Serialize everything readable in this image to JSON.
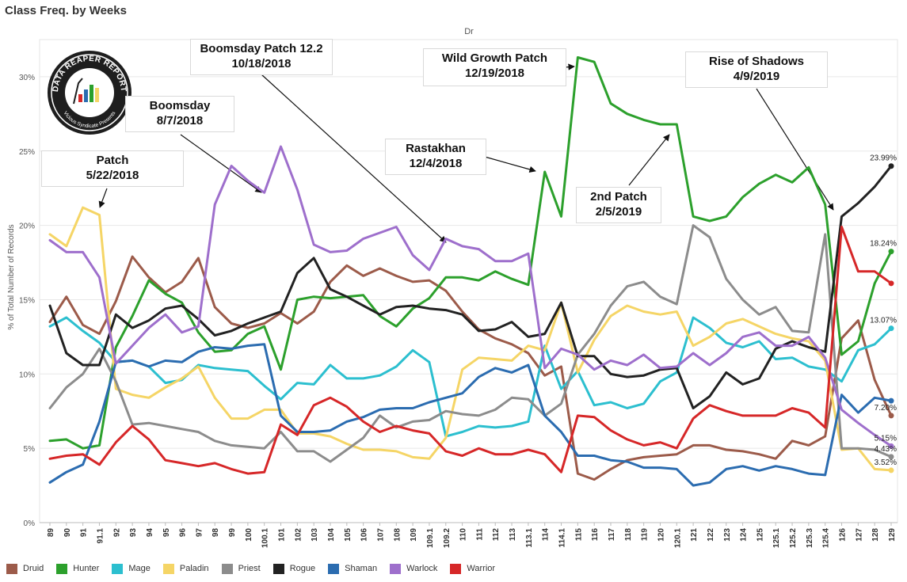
{
  "title": "Class Freq. by Weeks",
  "chart_data": {
    "type": "line",
    "subtitle": "Dr",
    "ylabel": "% of Total Number of Records",
    "ylim": [
      0,
      32.5
    ],
    "yticks": [
      0,
      5,
      10,
      15,
      20,
      25,
      30
    ],
    "ytick_labels": [
      "0%",
      "5%",
      "10%",
      "15%",
      "20%",
      "25%",
      "30%"
    ],
    "grid": true,
    "legend_position": "bottom",
    "categories": [
      "89",
      "90",
      "91",
      "91.1",
      "92",
      "93",
      "94",
      "95",
      "96",
      "97",
      "98",
      "99",
      "100",
      "100.1",
      "101",
      "102",
      "103",
      "104",
      "105",
      "106",
      "107",
      "108",
      "109",
      "109.1",
      "109.2",
      "110",
      "111",
      "112",
      "113",
      "113.1",
      "114",
      "114.1",
      "115",
      "116",
      "117",
      "118",
      "119",
      "120",
      "120.1",
      "121",
      "122",
      "123",
      "124",
      "125",
      "125.1",
      "125.2",
      "125.3",
      "125.4",
      "126",
      "127",
      "128",
      "129"
    ],
    "series": [
      {
        "name": "Druid",
        "color": "#9c5b4a",
        "values": [
          13.5,
          15.2,
          13.3,
          12.7,
          14.9,
          17.9,
          16.5,
          15.5,
          16.2,
          17.8,
          14.5,
          13.4,
          13.1,
          13.4,
          14.1,
          13.4,
          14.2,
          16.2,
          17.3,
          16.6,
          17.1,
          16.6,
          16.2,
          16.3,
          15.6,
          14.2,
          13.0,
          12.4,
          12.0,
          11.4,
          9.9,
          10.5,
          3.3,
          2.9,
          3.6,
          4.2,
          4.4,
          4.5,
          4.6,
          5.2,
          5.2,
          4.9,
          4.8,
          4.6,
          4.3,
          5.5,
          5.2,
          5.8,
          12.4,
          13.6,
          9.6,
          7.2
        ],
        "end_label": "7.20%"
      },
      {
        "name": "Hunter",
        "color": "#2ca02c",
        "values": [
          5.5,
          5.6,
          5.0,
          5.2,
          11.8,
          13.9,
          16.3,
          15.4,
          14.8,
          12.8,
          11.5,
          11.6,
          12.7,
          13.2,
          10.3,
          15.0,
          15.2,
          15.1,
          15.2,
          15.3,
          13.9,
          13.2,
          14.4,
          15.1,
          16.5,
          16.5,
          16.3,
          16.9,
          16.4,
          16.0,
          23.6,
          20.6,
          31.3,
          31.0,
          28.2,
          27.5,
          27.1,
          26.8,
          26.8,
          20.6,
          20.3,
          20.6,
          21.9,
          22.8,
          23.4,
          22.9,
          23.9,
          21.4,
          11.3,
          12.2,
          16.1,
          18.24
        ],
        "end_label": "18.24%"
      },
      {
        "name": "Mage",
        "color": "#2cbfcf",
        "values": [
          13.2,
          13.8,
          12.9,
          12.1,
          10.8,
          10.9,
          10.5,
          9.4,
          9.6,
          10.6,
          10.4,
          10.3,
          10.2,
          9.2,
          8.3,
          9.4,
          9.3,
          10.6,
          9.7,
          9.7,
          9.9,
          10.5,
          11.6,
          10.8,
          5.8,
          6.1,
          6.5,
          6.4,
          6.5,
          6.8,
          11.9,
          9.0,
          10.2,
          7.9,
          8.1,
          7.7,
          8.0,
          9.5,
          10.1,
          13.8,
          13.1,
          12.1,
          11.8,
          12.2,
          11.0,
          11.1,
          10.5,
          10.3,
          9.5,
          11.6,
          12.0,
          13.07
        ],
        "end_label": "13.07%"
      },
      {
        "name": "Paladin",
        "color": "#f5d566",
        "values": [
          19.4,
          18.6,
          21.2,
          20.7,
          9.0,
          8.6,
          8.4,
          9.1,
          9.7,
          10.5,
          8.4,
          7.0,
          7.0,
          7.6,
          7.6,
          6.0,
          6.0,
          5.8,
          5.3,
          4.9,
          4.9,
          4.8,
          4.4,
          4.3,
          5.7,
          10.3,
          11.1,
          11.0,
          10.9,
          11.9,
          11.6,
          14.8,
          10.1,
          12.3,
          13.9,
          14.6,
          14.2,
          14.0,
          14.2,
          11.9,
          12.5,
          13.4,
          13.7,
          13.2,
          12.7,
          12.4,
          12.2,
          10.9,
          4.9,
          5.0,
          3.6,
          3.52
        ],
        "end_label": "3.52%"
      },
      {
        "name": "Priest",
        "color": "#8c8c8c",
        "values": [
          7.7,
          9.1,
          10.0,
          11.7,
          9.5,
          6.6,
          6.7,
          6.5,
          6.3,
          6.1,
          5.5,
          5.2,
          5.1,
          5.0,
          6.1,
          4.8,
          4.8,
          4.1,
          4.9,
          5.7,
          7.2,
          6.4,
          6.8,
          6.9,
          7.5,
          7.3,
          7.2,
          7.6,
          8.4,
          8.3,
          7.2,
          8.0,
          11.3,
          12.7,
          14.6,
          15.9,
          16.2,
          15.2,
          14.7,
          20.0,
          19.2,
          16.4,
          15.0,
          14.0,
          14.5,
          12.9,
          12.8,
          19.4,
          5.0,
          5.0,
          4.9,
          4.43
        ],
        "end_label": "4.43%"
      },
      {
        "name": "Rogue",
        "color": "#222222",
        "values": [
          14.6,
          11.4,
          10.6,
          10.6,
          14.0,
          13.1,
          13.6,
          14.4,
          14.6,
          13.7,
          12.6,
          12.9,
          13.4,
          13.8,
          14.2,
          16.8,
          17.8,
          15.7,
          15.2,
          14.6,
          14.0,
          14.5,
          14.6,
          14.4,
          14.3,
          14.0,
          12.9,
          13.0,
          13.5,
          12.5,
          12.7,
          14.8,
          11.2,
          11.2,
          10.0,
          9.8,
          9.9,
          10.3,
          10.4,
          7.7,
          8.5,
          10.1,
          9.3,
          9.7,
          11.7,
          12.2,
          11.8,
          11.5,
          20.6,
          21.5,
          22.6,
          23.99
        ],
        "end_label": "23.99%"
      },
      {
        "name": "Shaman",
        "color": "#2b6cb0",
        "values": [
          2.7,
          3.4,
          3.9,
          6.8,
          10.8,
          10.9,
          10.5,
          10.9,
          10.8,
          11.5,
          11.8,
          11.7,
          11.9,
          12.0,
          7.2,
          6.1,
          6.1,
          6.2,
          6.8,
          7.1,
          7.6,
          7.7,
          7.7,
          8.1,
          8.4,
          8.7,
          9.8,
          10.4,
          10.1,
          10.6,
          7.2,
          6.1,
          4.5,
          4.5,
          4.2,
          4.1,
          3.7,
          3.7,
          3.6,
          2.5,
          2.7,
          3.6,
          3.8,
          3.5,
          3.8,
          3.6,
          3.3,
          3.2,
          8.6,
          7.4,
          8.4,
          8.2
        ],
        "end_label": ""
      },
      {
        "name": "Warlock",
        "color": "#9e6fcc",
        "values": [
          19.0,
          18.2,
          18.2,
          16.5,
          10.7,
          11.9,
          13.1,
          14.0,
          12.8,
          13.2,
          21.4,
          24.0,
          23.0,
          22.2,
          25.3,
          22.4,
          18.7,
          18.2,
          18.3,
          19.1,
          19.5,
          19.9,
          18.0,
          17.0,
          19.1,
          18.6,
          18.4,
          17.6,
          17.6,
          18.1,
          10.4,
          11.7,
          11.3,
          10.3,
          10.9,
          10.6,
          11.3,
          10.4,
          10.5,
          11.4,
          10.6,
          11.4,
          12.5,
          12.8,
          11.9,
          11.9,
          12.5,
          11.1,
          7.6,
          6.7,
          5.9,
          5.15
        ],
        "end_label": "5.15%"
      },
      {
        "name": "Warrior",
        "color": "#d62728",
        "values": [
          4.3,
          4.5,
          4.6,
          3.9,
          5.4,
          6.5,
          5.6,
          4.2,
          4.0,
          3.8,
          4.0,
          3.6,
          3.3,
          3.4,
          6.6,
          5.9,
          7.9,
          8.4,
          7.8,
          6.8,
          6.1,
          6.5,
          6.2,
          6.0,
          4.8,
          4.5,
          5.0,
          4.6,
          4.6,
          4.9,
          4.6,
          3.4,
          7.2,
          7.1,
          6.2,
          5.6,
          5.2,
          5.4,
          5.0,
          7.0,
          7.9,
          7.5,
          7.2,
          7.2,
          7.2,
          7.7,
          7.4,
          6.4,
          19.9,
          16.9,
          16.9,
          16.1
        ],
        "end_label": ""
      }
    ],
    "annotations": [
      {
        "id": "patch",
        "text": [
          "Patch",
          "5/22/2018"
        ]
      },
      {
        "id": "boomsday",
        "text": [
          "Boomsday",
          "8/7/2018"
        ]
      },
      {
        "id": "boomsday-patch",
        "text": [
          "Boomsday Patch 12.2",
          "10/18/2018"
        ]
      },
      {
        "id": "rastakhan",
        "text": [
          "Rastakhan",
          "12/4/2018"
        ]
      },
      {
        "id": "wild-growth",
        "text": [
          "Wild Growth Patch",
          "12/19/2018"
        ]
      },
      {
        "id": "second-patch",
        "text": [
          "2nd Patch",
          "2/5/2019"
        ]
      },
      {
        "id": "rise-of-shadows",
        "text": [
          "Rise of Shadows",
          "4/9/2019"
        ]
      }
    ]
  },
  "logo": {
    "text": "DATA REAPER REPORT",
    "subtext": "Vicious Syndicate Presents"
  }
}
